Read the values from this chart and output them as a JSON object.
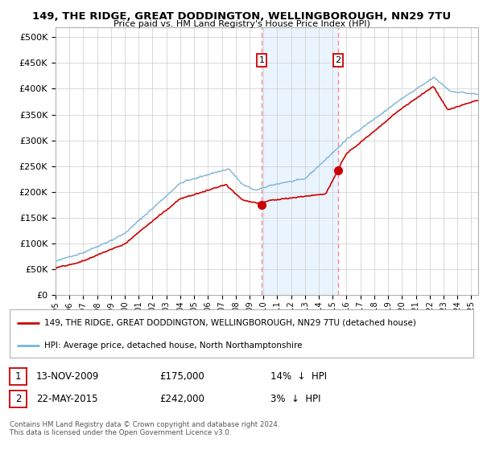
{
  "title1": "149, THE RIDGE, GREAT DODDINGTON, WELLINGBOROUGH, NN29 7TU",
  "title2": "Price paid vs. HM Land Registry's House Price Index (HPI)",
  "ylabel_ticks": [
    "£0",
    "£50K",
    "£100K",
    "£150K",
    "£200K",
    "£250K",
    "£300K",
    "£350K",
    "£400K",
    "£450K",
    "£500K"
  ],
  "ytick_values": [
    0,
    50000,
    100000,
    150000,
    200000,
    250000,
    300000,
    350000,
    400000,
    450000,
    500000
  ],
  "ylim": [
    0,
    520000
  ],
  "xlim_start": 1995.0,
  "xlim_end": 2025.5,
  "legend_line1": "149, THE RIDGE, GREAT DODDINGTON, WELLINGBOROUGH, NN29 7TU (detached house)",
  "legend_line2": "HPI: Average price, detached house, North Northamptonshire",
  "sale1_x": 2009.87,
  "sale1_y": 175000,
  "sale1_label": "1",
  "sale2_x": 2015.39,
  "sale2_y": 242000,
  "sale2_label": "2",
  "footnote": "Contains HM Land Registry data © Crown copyright and database right 2024.\nThis data is licensed under the Open Government Licence v3.0.",
  "line_red": "#cc0000",
  "line_blue": "#7ab3d8",
  "shade_color": "#ddeeff",
  "vline_color": "#ff8888",
  "background": "#ffffff",
  "grid_color": "#cccccc"
}
